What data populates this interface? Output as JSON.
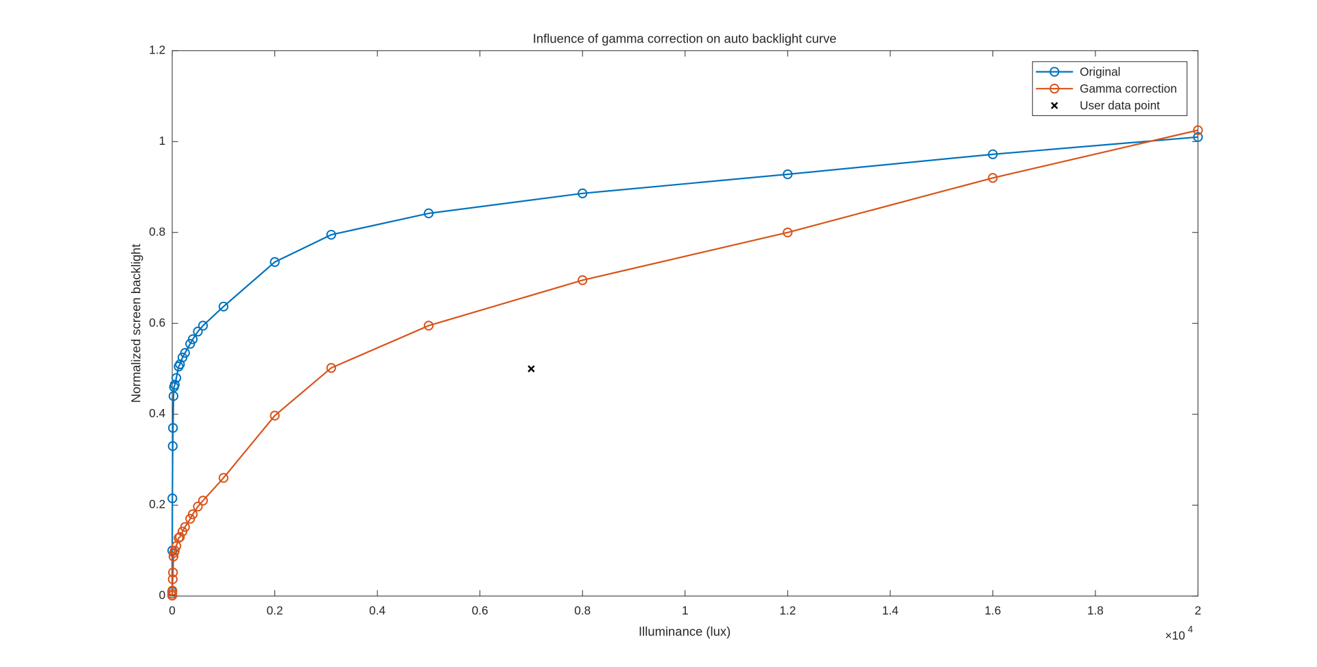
{
  "chart_data": {
    "type": "line",
    "title": "Influence of gamma correction on auto backlight curve",
    "xlabel": "Illuminance (lux)",
    "ylabel": "Normalized screen backlight",
    "x_exponent": "×10",
    "x_exponent_power": "4",
    "x": [
      0,
      1,
      3,
      10,
      15,
      25,
      35,
      50,
      80,
      125,
      150,
      200,
      250,
      350,
      400,
      500,
      600,
      1000,
      2000,
      3100,
      5000,
      8000,
      12000,
      16000,
      20000
    ],
    "series": [
      {
        "name": "Original",
        "color": "#0072BD",
        "marker": "o",
        "values": [
          0.01,
          0.1,
          0.215,
          0.33,
          0.37,
          0.44,
          0.46,
          0.465,
          0.48,
          0.505,
          0.51,
          0.525,
          0.535,
          0.555,
          0.565,
          0.582,
          0.595,
          0.637,
          0.735,
          0.795,
          0.842,
          0.886,
          0.928,
          0.972,
          1.01
        ]
      },
      {
        "name": "Gamma correction",
        "color": "#D95319",
        "marker": "o",
        "values": [
          0.001,
          0.005,
          0.012,
          0.037,
          0.052,
          0.087,
          0.095,
          0.1,
          0.11,
          0.128,
          0.13,
          0.142,
          0.152,
          0.17,
          0.18,
          0.197,
          0.21,
          0.26,
          0.397,
          0.502,
          0.595,
          0.695,
          0.8,
          0.92,
          1.025
        ]
      },
      {
        "name": "User data point",
        "color": "#000000",
        "marker": "x",
        "x": [
          7000
        ],
        "values": [
          0.5
        ]
      }
    ],
    "xlim": [
      0,
      20000
    ],
    "xticks": [
      0,
      {
        "value": 2000,
        "label": "0.2"
      },
      {
        "value": 4000,
        "label": "0.4"
      },
      {
        "value": 6000,
        "label": "0.6"
      },
      {
        "value": 8000,
        "label": "0.8"
      },
      {
        "value": 10000,
        "label": "1"
      },
      {
        "value": 12000,
        "label": "1.2"
      },
      {
        "value": 14000,
        "label": "1.4"
      },
      {
        "value": 16000,
        "label": "1.6"
      },
      {
        "value": 18000,
        "label": "1.8"
      },
      {
        "value": 20000,
        "label": "2"
      }
    ],
    "ylim": [
      0,
      1.2
    ],
    "yticks": [
      0,
      0.2,
      0.4,
      0.6,
      0.8,
      1,
      1.2
    ],
    "grid": false,
    "legend": "northeast"
  }
}
